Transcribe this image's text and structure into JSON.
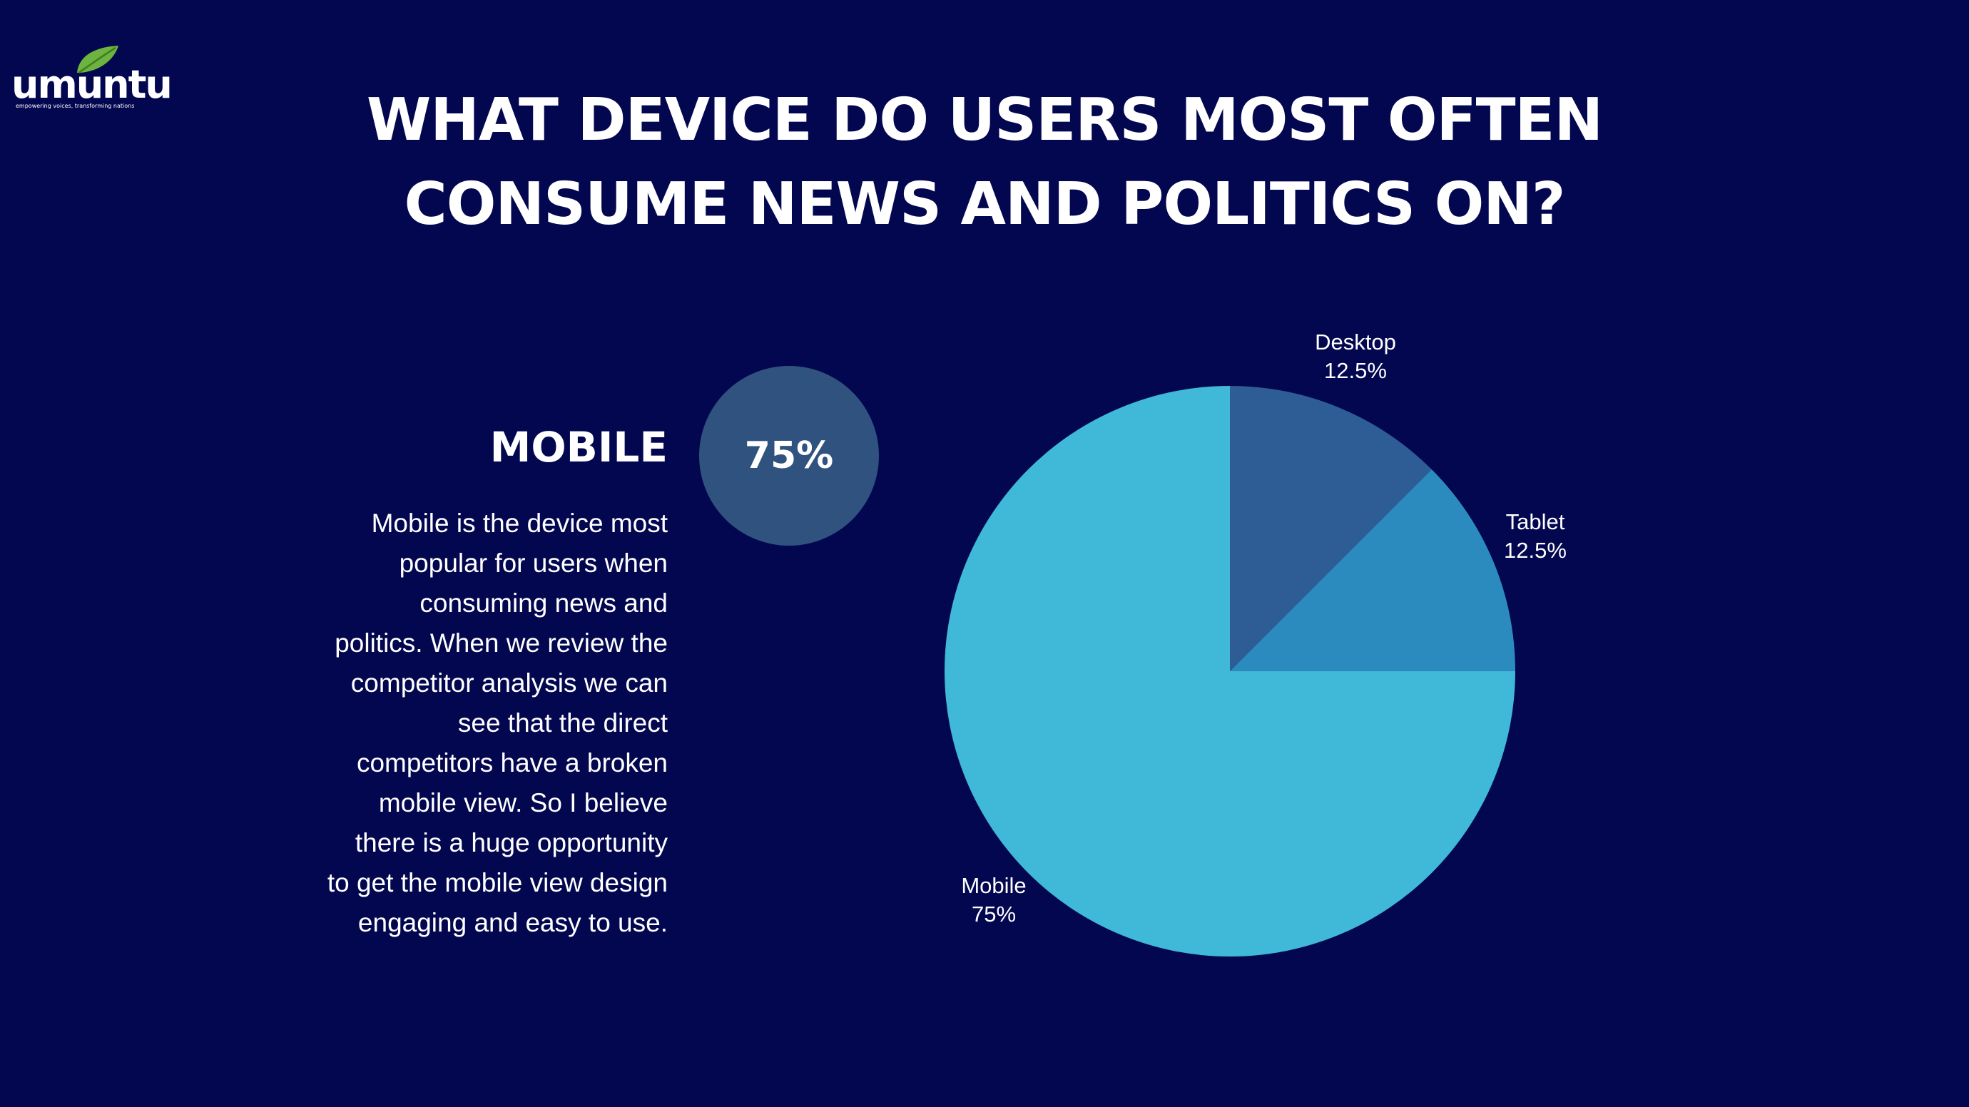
{
  "brand": {
    "name": "umuntu",
    "tagline": "empowering voices, transforming nations",
    "leaf_color": "#6cb33f"
  },
  "title_lines": [
    "WHAT DEVICE DO USERS MOST OFTEN",
    "CONSUME NEWS AND POLITICS ON?"
  ],
  "highlight": {
    "label": "MOBILE",
    "value": "75%",
    "description_lines": [
      "Mobile is the device most",
      "popular for users when",
      "consuming news and",
      "politics. When we review the",
      "competitor analysis we can",
      "see that the direct",
      "competitors have a broken",
      "mobile view. So I believe",
      "there is a huge opportunity",
      "to get the mobile view design",
      "engaging and easy to use."
    ]
  },
  "colors": {
    "background": "#03074f",
    "badge": "#30527e"
  },
  "chart_data": {
    "type": "pie",
    "title": "",
    "slices": [
      {
        "name": "Desktop",
        "value": 12.5,
        "label": "12.5%",
        "color": "#2e5c94"
      },
      {
        "name": "Tablet",
        "value": 12.5,
        "label": "12.5%",
        "color": "#2b8bbf"
      },
      {
        "name": "Mobile",
        "value": 75,
        "label": "75%",
        "color": "#40b8d7"
      }
    ],
    "start_angle_deg": 0,
    "direction": "clockwise"
  }
}
